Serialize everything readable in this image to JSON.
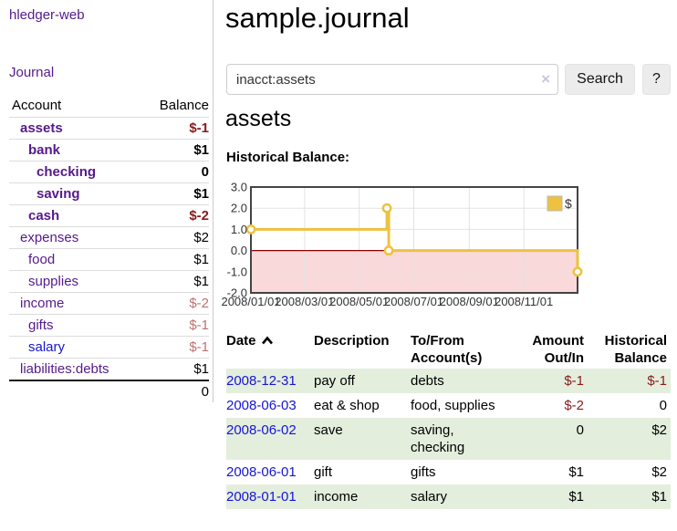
{
  "sidebar": {
    "brand": "hledger-web",
    "nav_journal": "Journal",
    "accounts_table": {
      "headers": [
        "Account",
        "Balance"
      ],
      "rows": [
        {
          "name": "assets",
          "depth": 1,
          "bold": true,
          "name_color": "purple",
          "balance": "$-1",
          "balance_style": "neg-strong"
        },
        {
          "name": "bank",
          "depth": 2,
          "bold": true,
          "name_color": "purple",
          "balance": "$1",
          "balance_style": "pos"
        },
        {
          "name": "checking",
          "depth": 3,
          "bold": true,
          "name_color": "purple",
          "balance": "0",
          "balance_style": "pos"
        },
        {
          "name": "saving",
          "depth": 3,
          "bold": true,
          "name_color": "purple",
          "balance": "$1",
          "balance_style": "pos"
        },
        {
          "name": "cash",
          "depth": 2,
          "bold": true,
          "name_color": "purple",
          "balance": "$-2",
          "balance_style": "neg-strong"
        },
        {
          "name": "expenses",
          "depth": 1,
          "bold": false,
          "name_color": "purple",
          "balance": "$2",
          "balance_style": "pos"
        },
        {
          "name": "food",
          "depth": 2,
          "bold": false,
          "name_color": "purple",
          "balance": "$1",
          "balance_style": "pos"
        },
        {
          "name": "supplies",
          "depth": 2,
          "bold": false,
          "name_color": "purple",
          "balance": "$1",
          "balance_style": "pos"
        },
        {
          "name": "income",
          "depth": 1,
          "bold": false,
          "name_color": "purple",
          "balance": "$-2",
          "balance_style": "neg-soft"
        },
        {
          "name": "gifts",
          "depth": 2,
          "bold": false,
          "name_color": "purple",
          "balance": "$-1",
          "balance_style": "neg-soft"
        },
        {
          "name": "salary",
          "depth": 2,
          "bold": false,
          "name_color": "blue",
          "balance": "$-1",
          "balance_style": "neg-soft"
        },
        {
          "name": "liabilities:debts",
          "depth": 1,
          "bold": false,
          "name_color": "purple",
          "balance": "$1",
          "balance_style": "pos"
        }
      ],
      "total": "0"
    }
  },
  "main": {
    "title": "sample.journal",
    "search": {
      "value": "inacct:assets",
      "clear_icon": "×",
      "button": "Search",
      "help_button": "?"
    },
    "account_heading": "assets",
    "chart_label": "Historical Balance:",
    "transactions": {
      "headers": {
        "date": "Date",
        "description": "Description",
        "accounts": "To/From Account(s)",
        "amount": "Amount Out/In",
        "balance": "Historical Balance"
      },
      "rows": [
        {
          "date": "2008-12-31",
          "description": "pay off",
          "accounts": "debts",
          "amount": "$-1",
          "balance": "$-1"
        },
        {
          "date": "2008-06-03",
          "description": "eat & shop",
          "accounts": "food, supplies",
          "amount": "$-2",
          "balance": "0"
        },
        {
          "date": "2008-06-02",
          "description": "save",
          "accounts": "saving, checking",
          "amount": "0",
          "balance": "$2"
        },
        {
          "date": "2008-06-01",
          "description": "gift",
          "accounts": "gifts",
          "amount": "$1",
          "balance": "$2"
        },
        {
          "date": "2008-01-01",
          "description": "income",
          "accounts": "salary",
          "amount": "$1",
          "balance": "$1"
        }
      ]
    }
  },
  "chart_data": {
    "type": "line",
    "title": "Historical Balance:",
    "step": true,
    "x_range": [
      "2008/01/01",
      "2008/12/31"
    ],
    "x_ticks": [
      "2008/01/01",
      "2008/03/01",
      "2008/05/01",
      "2008/07/01",
      "2008/09/01",
      "2008/11/01"
    ],
    "y_ticks": [
      "3.0",
      "2.0",
      "1.0",
      "0.0",
      "-1.0",
      "-2.0"
    ],
    "ylim": [
      -2,
      3
    ],
    "grid": true,
    "legend": {
      "label": "$",
      "position": "top-right"
    },
    "series": [
      {
        "name": "$",
        "color": "#edc240",
        "points": [
          {
            "date": "2008/01/01",
            "value": 1
          },
          {
            "date": "2008/06/01",
            "value": 2
          },
          {
            "date": "2008/06/03",
            "value": 0
          },
          {
            "date": "2008/12/31",
            "value": -1
          }
        ]
      }
    ]
  },
  "colors": {
    "link_purple": "#551a8b",
    "link_blue": "#1515d6",
    "negative_strong": "#8b1a1a",
    "negative_soft": "#bf7171",
    "row_stripe_green": "#e4eedd",
    "chart_line": "#edc240",
    "chart_negative_region": "#f9d9d9",
    "chart_zero_line": "#8b0000",
    "chart_border": "#444444",
    "gridline": "#e3e3e3"
  }
}
